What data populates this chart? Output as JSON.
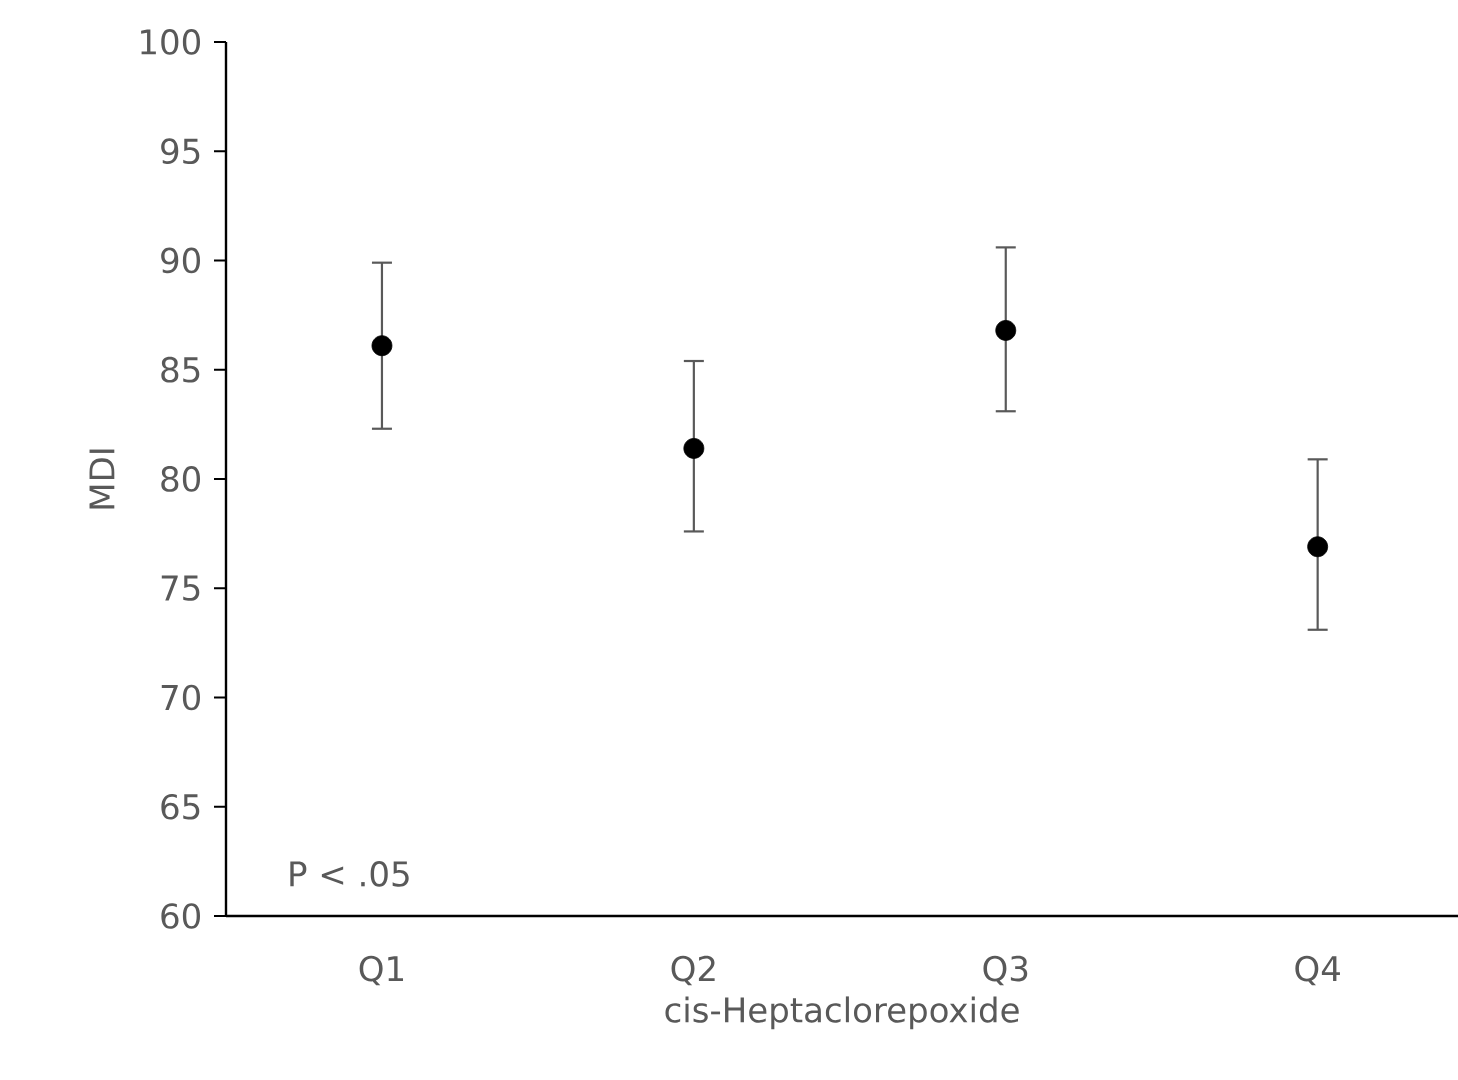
{
  "chart_data": {
    "type": "scatter",
    "xlabel": "cis-Heptaclorepoxide",
    "ylabel": "MDI",
    "categories": [
      "Q1",
      "Q2",
      "Q3",
      "Q4"
    ],
    "values": [
      86.1,
      81.4,
      86.8,
      76.9
    ],
    "errors": [
      [
        82.3,
        89.9
      ],
      [
        77.6,
        85.4
      ],
      [
        83.1,
        90.6
      ],
      [
        73.1,
        80.9
      ]
    ],
    "color": "#000000",
    "marker": "circle",
    "ylim": [
      60,
      100
    ],
    "yticks": [
      60,
      65,
      70,
      75,
      80,
      85,
      90,
      95,
      100
    ],
    "annotations": [
      "P < .05"
    ]
  }
}
